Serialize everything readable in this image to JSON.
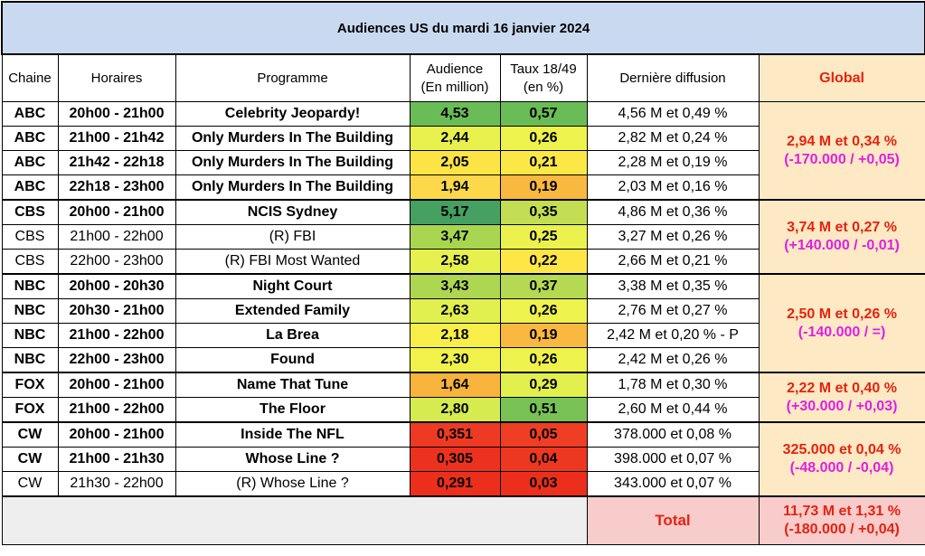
{
  "title": "Audiences US du mardi 16 janvier 2024",
  "headers": {
    "chaine": "Chaine",
    "horaires": "Horaires",
    "programme": "Programme",
    "audience_l1": "Audience",
    "audience_l2": "(En million)",
    "taux_l1": "Taux 18/49",
    "taux_l2": "(en %)",
    "derniere": "Dernière diffusion",
    "global": "Global"
  },
  "rows": [
    {
      "chaine": "ABC",
      "horaires": "20h00 - 21h00",
      "programme": "Celebrity Jeopardy!",
      "audience": "4,53",
      "taux": "0,57",
      "derniere": "4,56 M et 0,49 %",
      "bold": true,
      "aud_color": "#6abd56",
      "taux_color": "#6abd56"
    },
    {
      "chaine": "ABC",
      "horaires": "21h00 - 21h42",
      "programme": "Only Murders In The Building",
      "audience": "2,44",
      "taux": "0,26",
      "derniere": "2,82 M et 0,24 %",
      "bold": true,
      "aud_color": "#e9f14f",
      "taux_color": "#eef24c"
    },
    {
      "chaine": "ABC",
      "horaires": "21h42 - 22h18",
      "programme": "Only Murders In The Building",
      "audience": "2,05",
      "taux": "0,21",
      "derniere": "2,28 M et 0,19 %",
      "bold": true,
      "aud_color": "#fde445",
      "taux_color": "#fbe847"
    },
    {
      "chaine": "ABC",
      "horaires": "22h18 - 23h00",
      "programme": "Only Murders In The Building",
      "audience": "1,94",
      "taux": "0,19",
      "derniere": "2,03 M et 0,16 %",
      "bold": true,
      "aud_color": "#fcd84a",
      "taux_color": "#f9b83f"
    },
    {
      "chaine": "CBS",
      "horaires": "20h00 - 21h00",
      "programme": "NCIS Sydney",
      "audience": "5,17",
      "taux": "0,35",
      "derniere": "4,86 M et 0,36 %",
      "bold": true,
      "aud_color": "#45a062",
      "taux_color": "#c3de52"
    },
    {
      "chaine": "CBS",
      "horaires": "21h00 - 22h00",
      "programme": "(R) FBI",
      "audience": "3,47",
      "taux": "0,25",
      "derniere": "3,27 M et 0,26 %",
      "bold": false,
      "aud_color": "#a8d650",
      "taux_color": "#ecf24d"
    },
    {
      "chaine": "CBS",
      "horaires": "22h00 - 23h00",
      "programme": "(R) FBI Most Wanted",
      "audience": "2,58",
      "taux": "0,22",
      "derniere": "2,66 M et 0,21 %",
      "bold": false,
      "aud_color": "#e6f14f",
      "taux_color": "#fde646"
    },
    {
      "chaine": "NBC",
      "horaires": "20h00 - 20h30",
      "programme": "Night Court",
      "audience": "3,43",
      "taux": "0,37",
      "derniere": "3,38 M et 0,35 %",
      "bold": true,
      "aud_color": "#aed751",
      "taux_color": "#b6d953"
    },
    {
      "chaine": "NBC",
      "horaires": "20h30 - 21h00",
      "programme": "Extended Family",
      "audience": "2,63",
      "taux": "0,26",
      "derniere": "2,76 M et 0,27 %",
      "bold": true,
      "aud_color": "#e2f04f",
      "taux_color": "#eef24c"
    },
    {
      "chaine": "NBC",
      "horaires": "21h00 - 22h00",
      "programme": "La Brea",
      "audience": "2,18",
      "taux": "0,19",
      "derniere": "2,42 M et 0,20 % - P",
      "bold": true,
      "aud_color": "#f8ee4a",
      "taux_color": "#f9b83f"
    },
    {
      "chaine": "NBC",
      "horaires": "22h00 - 23h00",
      "programme": "Found",
      "audience": "2,30",
      "taux": "0,26",
      "derniere": "2,42 M et 0,26 %",
      "bold": true,
      "aud_color": "#f1f14c",
      "taux_color": "#eef24c"
    },
    {
      "chaine": "FOX",
      "horaires": "20h00 - 21h00",
      "programme": "Name That Tune",
      "audience": "1,64",
      "taux": "0,29",
      "derniere": "1,78 M et 0,30 %",
      "bold": true,
      "aud_color": "#f8b33d",
      "taux_color": "#e2f04e"
    },
    {
      "chaine": "FOX",
      "horaires": "21h00 - 22h00",
      "programme": "The Floor",
      "audience": "2,80",
      "taux": "0,51",
      "derniere": "2,60 M et 0,44 %",
      "bold": true,
      "aud_color": "#d5eb50",
      "taux_color": "#78c255"
    },
    {
      "chaine": "CW",
      "horaires": "20h00 - 21h00",
      "programme": "Inside The NFL",
      "audience": "0,351",
      "taux": "0,05",
      "derniere": "378.000 et 0,08 %",
      "bold": true,
      "aud_color": "#ee3a24",
      "taux_color": "#ef3e24"
    },
    {
      "chaine": "CW",
      "horaires": "21h00 - 21h30",
      "programme": "Whose Line ?",
      "audience": "0,305",
      "taux": "0,04",
      "derniere": "398.000 et 0,07 %",
      "bold": true,
      "aud_color": "#ec321e",
      "taux_color": "#ee3720"
    },
    {
      "chaine": "CW",
      "horaires": "21h30 - 22h00",
      "programme": "(R) Whose Line ?",
      "audience": "0,291",
      "taux": "0,03",
      "derniere": "343.000 et 0,07 %",
      "bold": false,
      "aud_color": "#ec2e1c",
      "taux_color": "#ec2f1c"
    }
  ],
  "globals": [
    {
      "main": "2,94 M et 0,34 %",
      "diff": "(-170.000 / +0,05)",
      "rowspan": 4
    },
    {
      "main": "3,74 M et 0,27 %",
      "diff": "(+140.000 / -0,01)",
      "rowspan": 3
    },
    {
      "main": "2,50 M et 0,26 %",
      "diff": "(-140.000 / =)",
      "rowspan": 4
    },
    {
      "main": "2,22 M et 0,40 %",
      "diff": "(+30.000 / +0,03)",
      "rowspan": 2
    },
    {
      "main": "325.000 et 0,04 %",
      "diff": "(-48.000 / -0,04)",
      "rowspan": 3
    }
  ],
  "total": {
    "label": "Total",
    "main": "11,73 M et 1,31 %",
    "diff": "(-180.000 / +0,04)"
  }
}
